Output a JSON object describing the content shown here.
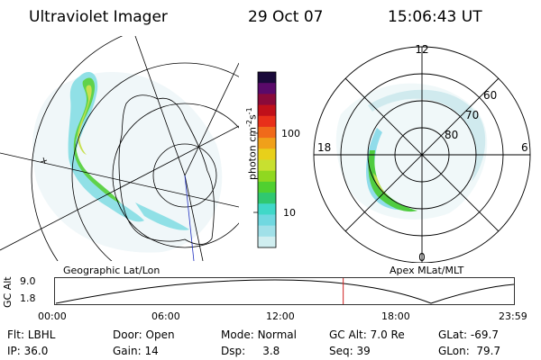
{
  "header": {
    "instrument": "Ultraviolet Imager",
    "date": "29 Oct 07",
    "time": "15:06:43 UT"
  },
  "left_panel": {
    "caption": "Geographic Lat/Lon"
  },
  "right_panel": {
    "caption": "Apex MLat/MLT",
    "lat_labels": [
      "60",
      "70",
      "80"
    ],
    "mlt_labels": {
      "top": "12",
      "left": "18",
      "right": "6",
      "bottom": "0"
    }
  },
  "colorbar": {
    "unit_label": "photon cm",
    "unit_sup1": "-2",
    "unit_mid": "s",
    "unit_sup2": "-1",
    "tick_labels": [
      "100",
      "10"
    ],
    "colors": [
      "#1a0a3a",
      "#5a0a6a",
      "#8a0a3a",
      "#c0101a",
      "#e8301a",
      "#f06a1a",
      "#f0a01a",
      "#e8d01a",
      "#c8e030",
      "#90d820",
      "#50d030",
      "#30c870",
      "#40d8c8",
      "#70d8e0",
      "#a0e0e8",
      "#d0eef0"
    ]
  },
  "timeline": {
    "axis_label": "GC Alt",
    "y_ticks": [
      "9.0",
      "1.8"
    ],
    "x_ticks": [
      "00:00",
      "06:00",
      "12:00",
      "18:00",
      "23:59"
    ],
    "current_time_fraction": 0.628
  },
  "status": {
    "filter_label": "Flt:",
    "filter_value": "LBHL",
    "ip_label": "IP:",
    "ip_value": "36.0",
    "door_label": "Door:",
    "door_value": "Open",
    "gain_label": "Gain:",
    "gain_value": "14",
    "mode_label": "Mode:",
    "mode_value": "Normal",
    "dsp_label": "Dsp:",
    "dsp_value": "3.8",
    "gcalt_label": "GC Alt:",
    "gcalt_value": "7.0 Re",
    "seq_label": "Seq:",
    "seq_value": "39",
    "glat_label": "GLat:",
    "glat_value": "-69.7",
    "glon_label": "GLon:",
    "glon_value": "79.7"
  }
}
